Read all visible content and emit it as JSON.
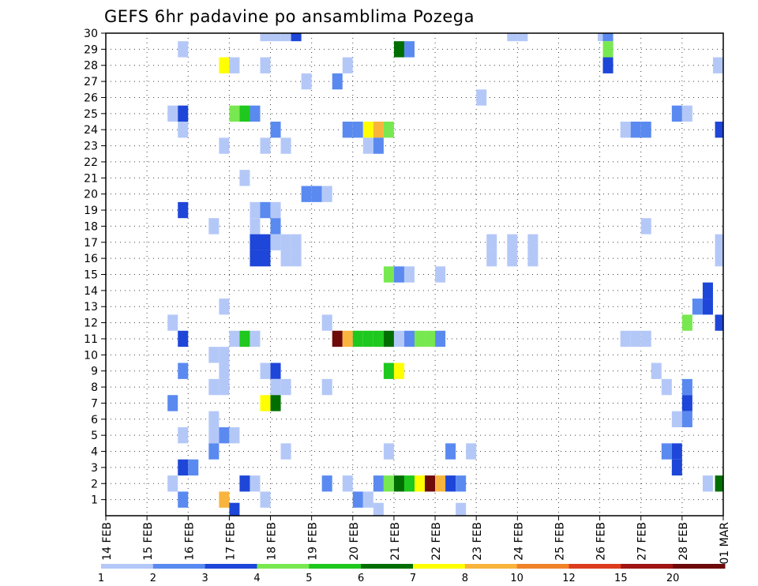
{
  "chart_data": {
    "type": "heatmap",
    "title": "GEFS 6hr padavine po ansamblima Pozega",
    "xlabel": "",
    "ylabel": "",
    "x_tick_labels": [
      "14 FEB",
      "15 FEB",
      "16 FEB",
      "17 FEB",
      "18 FEB",
      "19 FEB",
      "20 FEB",
      "21 FEB",
      "22 FEB",
      "23 FEB",
      "24 FEB",
      "25 FEB",
      "26 FEB",
      "27 FEB",
      "28 FEB",
      "01 MAR"
    ],
    "y_tick_labels": [
      "1",
      "2",
      "3",
      "4",
      "5",
      "6",
      "7",
      "8",
      "9",
      "10",
      "11",
      "12",
      "13",
      "14",
      "15",
      "16",
      "17",
      "18",
      "19",
      "20",
      "21",
      "22",
      "23",
      "24",
      "25",
      "26",
      "27",
      "28",
      "29",
      "30"
    ],
    "ylim": [
      0,
      30
    ],
    "x_unit": "6-hour step from 14 FEB 00Z",
    "xlim": [
      0,
      60
    ],
    "grid": true,
    "colorbar": {
      "placement": "bottom",
      "labels": [
        "1",
        "2",
        "3",
        "4",
        "5",
        "6",
        "7",
        "8",
        "10",
        "12",
        "15",
        "20"
      ],
      "colors": [
        "#b4c8f8",
        "#5a8af0",
        "#1e46d8",
        "#78e850",
        "#1ec81e",
        "#006e00",
        "#ffff00",
        "#f8b43c",
        "#f08228",
        "#dc3c1e",
        "#a01414",
        "#6e0a0a"
      ]
    },
    "cells": [
      {
        "x": 48.3,
        "y": 30,
        "v": 1
      },
      {
        "x": 48.8,
        "y": 30,
        "v": 2
      },
      {
        "x": 48.8,
        "y": 29,
        "v": 4
      },
      {
        "x": 48.8,
        "y": 28,
        "v": 3
      },
      {
        "x": 15.5,
        "y": 30,
        "v": 1
      },
      {
        "x": 16.5,
        "y": 30,
        "v": 1
      },
      {
        "x": 17.5,
        "y": 30,
        "v": 1
      },
      {
        "x": 18.5,
        "y": 30,
        "v": 3
      },
      {
        "x": 39.5,
        "y": 30,
        "v": 1
      },
      {
        "x": 40.5,
        "y": 30,
        "v": 1
      },
      {
        "x": 7.5,
        "y": 29,
        "v": 1
      },
      {
        "x": 28.5,
        "y": 29,
        "v": 6
      },
      {
        "x": 29.5,
        "y": 29,
        "v": 2
      },
      {
        "x": 11.5,
        "y": 28,
        "v": 7
      },
      {
        "x": 12.5,
        "y": 28,
        "v": 1
      },
      {
        "x": 15.5,
        "y": 28,
        "v": 1
      },
      {
        "x": 23.5,
        "y": 28,
        "v": 1
      },
      {
        "x": 59.5,
        "y": 28,
        "v": 1
      },
      {
        "x": 19.5,
        "y": 27,
        "v": 1
      },
      {
        "x": 22.5,
        "y": 27,
        "v": 2
      },
      {
        "x": 36.5,
        "y": 26,
        "v": 1
      },
      {
        "x": 6.5,
        "y": 25,
        "v": 1
      },
      {
        "x": 7.5,
        "y": 25,
        "v": 3
      },
      {
        "x": 12.5,
        "y": 25,
        "v": 4
      },
      {
        "x": 13.5,
        "y": 25,
        "v": 5
      },
      {
        "x": 14.5,
        "y": 25,
        "v": 2
      },
      {
        "x": 55.5,
        "y": 25,
        "v": 2
      },
      {
        "x": 56.5,
        "y": 25,
        "v": 1
      },
      {
        "x": 7.5,
        "y": 24,
        "v": 1
      },
      {
        "x": 16.5,
        "y": 24,
        "v": 2
      },
      {
        "x": 23.5,
        "y": 24,
        "v": 2
      },
      {
        "x": 24.5,
        "y": 24,
        "v": 2
      },
      {
        "x": 25.5,
        "y": 24,
        "v": 7
      },
      {
        "x": 26.5,
        "y": 24,
        "v": 8
      },
      {
        "x": 27.5,
        "y": 24,
        "v": 4
      },
      {
        "x": 50.5,
        "y": 24,
        "v": 1
      },
      {
        "x": 51.5,
        "y": 24,
        "v": 2
      },
      {
        "x": 52.5,
        "y": 24,
        "v": 2
      },
      {
        "x": 59.7,
        "y": 24,
        "v": 3
      },
      {
        "x": 11.5,
        "y": 23,
        "v": 1
      },
      {
        "x": 15.5,
        "y": 23,
        "v": 1
      },
      {
        "x": 17.5,
        "y": 23,
        "v": 1
      },
      {
        "x": 25.5,
        "y": 23,
        "v": 1
      },
      {
        "x": 26.5,
        "y": 23,
        "v": 2
      },
      {
        "x": 13.5,
        "y": 21,
        "v": 1
      },
      {
        "x": 19.5,
        "y": 20,
        "v": 2
      },
      {
        "x": 20.5,
        "y": 20,
        "v": 2
      },
      {
        "x": 21.5,
        "y": 20,
        "v": 1
      },
      {
        "x": 7.5,
        "y": 19,
        "v": 3
      },
      {
        "x": 14.5,
        "y": 19,
        "v": 1
      },
      {
        "x": 15.5,
        "y": 19,
        "v": 2
      },
      {
        "x": 16.5,
        "y": 19,
        "v": 1
      },
      {
        "x": 10.5,
        "y": 18,
        "v": 1
      },
      {
        "x": 14.5,
        "y": 18,
        "v": 1
      },
      {
        "x": 16.5,
        "y": 18,
        "v": 2
      },
      {
        "x": 52.5,
        "y": 18,
        "v": 1
      },
      {
        "x": 14.5,
        "y": 17,
        "v": 3
      },
      {
        "x": 15.5,
        "y": 17,
        "v": 3
      },
      {
        "x": 16.5,
        "y": 17,
        "v": 1
      },
      {
        "x": 17.5,
        "y": 17,
        "v": 1
      },
      {
        "x": 18.5,
        "y": 17,
        "v": 1
      },
      {
        "x": 37.5,
        "y": 17,
        "v": 1
      },
      {
        "x": 39.5,
        "y": 17,
        "v": 1
      },
      {
        "x": 41.5,
        "y": 17,
        "v": 1
      },
      {
        "x": 59.7,
        "y": 17,
        "v": 1
      },
      {
        "x": 14.5,
        "y": 16,
        "v": 3
      },
      {
        "x": 15.5,
        "y": 16,
        "v": 3
      },
      {
        "x": 17.5,
        "y": 16,
        "v": 1
      },
      {
        "x": 18.5,
        "y": 16,
        "v": 1
      },
      {
        "x": 37.5,
        "y": 16,
        "v": 1
      },
      {
        "x": 39.5,
        "y": 16,
        "v": 1
      },
      {
        "x": 41.5,
        "y": 16,
        "v": 1
      },
      {
        "x": 59.7,
        "y": 16,
        "v": 1
      },
      {
        "x": 27.5,
        "y": 15,
        "v": 4
      },
      {
        "x": 28.5,
        "y": 15,
        "v": 2
      },
      {
        "x": 29.5,
        "y": 15,
        "v": 1
      },
      {
        "x": 32.5,
        "y": 15,
        "v": 1
      },
      {
        "x": 58.5,
        "y": 14,
        "v": 3
      },
      {
        "x": 11.5,
        "y": 13,
        "v": 1
      },
      {
        "x": 57.5,
        "y": 13,
        "v": 2
      },
      {
        "x": 58.5,
        "y": 13,
        "v": 3
      },
      {
        "x": 6.5,
        "y": 12,
        "v": 1
      },
      {
        "x": 21.5,
        "y": 12,
        "v": 1
      },
      {
        "x": 56.5,
        "y": 12,
        "v": 4
      },
      {
        "x": 59.7,
        "y": 12,
        "v": 3
      },
      {
        "x": 7.5,
        "y": 11,
        "v": 3
      },
      {
        "x": 12.5,
        "y": 11,
        "v": 1
      },
      {
        "x": 13.5,
        "y": 11,
        "v": 5
      },
      {
        "x": 14.5,
        "y": 11,
        "v": 1
      },
      {
        "x": 22.5,
        "y": 11,
        "v": 12
      },
      {
        "x": 23.5,
        "y": 11,
        "v": 8
      },
      {
        "x": 24.5,
        "y": 11,
        "v": 5
      },
      {
        "x": 25.5,
        "y": 11,
        "v": 5
      },
      {
        "x": 26.5,
        "y": 11,
        "v": 5
      },
      {
        "x": 27.5,
        "y": 11,
        "v": 6
      },
      {
        "x": 28.5,
        "y": 11,
        "v": 1
      },
      {
        "x": 29.5,
        "y": 11,
        "v": 2
      },
      {
        "x": 30.5,
        "y": 11,
        "v": 4
      },
      {
        "x": 31.5,
        "y": 11,
        "v": 4
      },
      {
        "x": 32.5,
        "y": 11,
        "v": 2
      },
      {
        "x": 50.5,
        "y": 11,
        "v": 1
      },
      {
        "x": 51.5,
        "y": 11,
        "v": 1
      },
      {
        "x": 52.5,
        "y": 11,
        "v": 1
      },
      {
        "x": 10.5,
        "y": 10,
        "v": 1
      },
      {
        "x": 11.5,
        "y": 10,
        "v": 1
      },
      {
        "x": 7.5,
        "y": 9,
        "v": 2
      },
      {
        "x": 11.5,
        "y": 9,
        "v": 1
      },
      {
        "x": 15.5,
        "y": 9,
        "v": 1
      },
      {
        "x": 16.5,
        "y": 9,
        "v": 3
      },
      {
        "x": 27.5,
        "y": 9,
        "v": 5
      },
      {
        "x": 28.5,
        "y": 9,
        "v": 7
      },
      {
        "x": 53.5,
        "y": 9,
        "v": 1
      },
      {
        "x": 10.5,
        "y": 8,
        "v": 1
      },
      {
        "x": 11.5,
        "y": 8,
        "v": 1
      },
      {
        "x": 16.5,
        "y": 8,
        "v": 1
      },
      {
        "x": 17.5,
        "y": 8,
        "v": 1
      },
      {
        "x": 21.5,
        "y": 8,
        "v": 1
      },
      {
        "x": 54.5,
        "y": 8,
        "v": 1
      },
      {
        "x": 56.5,
        "y": 8,
        "v": 2
      },
      {
        "x": 6.5,
        "y": 7,
        "v": 2
      },
      {
        "x": 15.5,
        "y": 7,
        "v": 7
      },
      {
        "x": 16.5,
        "y": 7,
        "v": 6
      },
      {
        "x": 56.5,
        "y": 7,
        "v": 3
      },
      {
        "x": 10.5,
        "y": 6,
        "v": 1
      },
      {
        "x": 55.5,
        "y": 6,
        "v": 1
      },
      {
        "x": 56.5,
        "y": 6,
        "v": 2
      },
      {
        "x": 7.5,
        "y": 5,
        "v": 1
      },
      {
        "x": 10.5,
        "y": 5,
        "v": 1
      },
      {
        "x": 11.5,
        "y": 5,
        "v": 2
      },
      {
        "x": 12.5,
        "y": 5,
        "v": 1
      },
      {
        "x": 10.5,
        "y": 4,
        "v": 2
      },
      {
        "x": 17.5,
        "y": 4,
        "v": 1
      },
      {
        "x": 27.5,
        "y": 4,
        "v": 1
      },
      {
        "x": 33.5,
        "y": 4,
        "v": 2
      },
      {
        "x": 35.5,
        "y": 4,
        "v": 1
      },
      {
        "x": 54.5,
        "y": 4,
        "v": 2
      },
      {
        "x": 55.5,
        "y": 4,
        "v": 3
      },
      {
        "x": 7.5,
        "y": 3,
        "v": 3
      },
      {
        "x": 8.5,
        "y": 3,
        "v": 2
      },
      {
        "x": 55.5,
        "y": 3,
        "v": 3
      },
      {
        "x": 6.5,
        "y": 2,
        "v": 1
      },
      {
        "x": 13.5,
        "y": 2,
        "v": 3
      },
      {
        "x": 14.5,
        "y": 2,
        "v": 1
      },
      {
        "x": 21.5,
        "y": 2,
        "v": 2
      },
      {
        "x": 23.5,
        "y": 2,
        "v": 1
      },
      {
        "x": 26.5,
        "y": 2,
        "v": 2
      },
      {
        "x": 27.5,
        "y": 2,
        "v": 4
      },
      {
        "x": 28.5,
        "y": 2,
        "v": 6
      },
      {
        "x": 29.5,
        "y": 2,
        "v": 5
      },
      {
        "x": 30.5,
        "y": 2,
        "v": 7
      },
      {
        "x": 31.5,
        "y": 2,
        "v": 12
      },
      {
        "x": 32.5,
        "y": 2,
        "v": 8
      },
      {
        "x": 33.5,
        "y": 2,
        "v": 3
      },
      {
        "x": 34.5,
        "y": 2,
        "v": 2
      },
      {
        "x": 58.5,
        "y": 2,
        "v": 1
      },
      {
        "x": 59.7,
        "y": 2,
        "v": 6
      },
      {
        "x": 7.5,
        "y": 1,
        "v": 2
      },
      {
        "x": 11.5,
        "y": 1,
        "v": 8
      },
      {
        "x": 15.5,
        "y": 1,
        "v": 1
      },
      {
        "x": 24.5,
        "y": 1,
        "v": 2
      },
      {
        "x": 25.5,
        "y": 1,
        "v": 1
      },
      {
        "x": 12.5,
        "y": 0.3,
        "v": 3
      },
      {
        "x": 26.5,
        "y": 0.3,
        "v": 1
      },
      {
        "x": 34.5,
        "y": 0.3,
        "v": 1
      }
    ]
  }
}
